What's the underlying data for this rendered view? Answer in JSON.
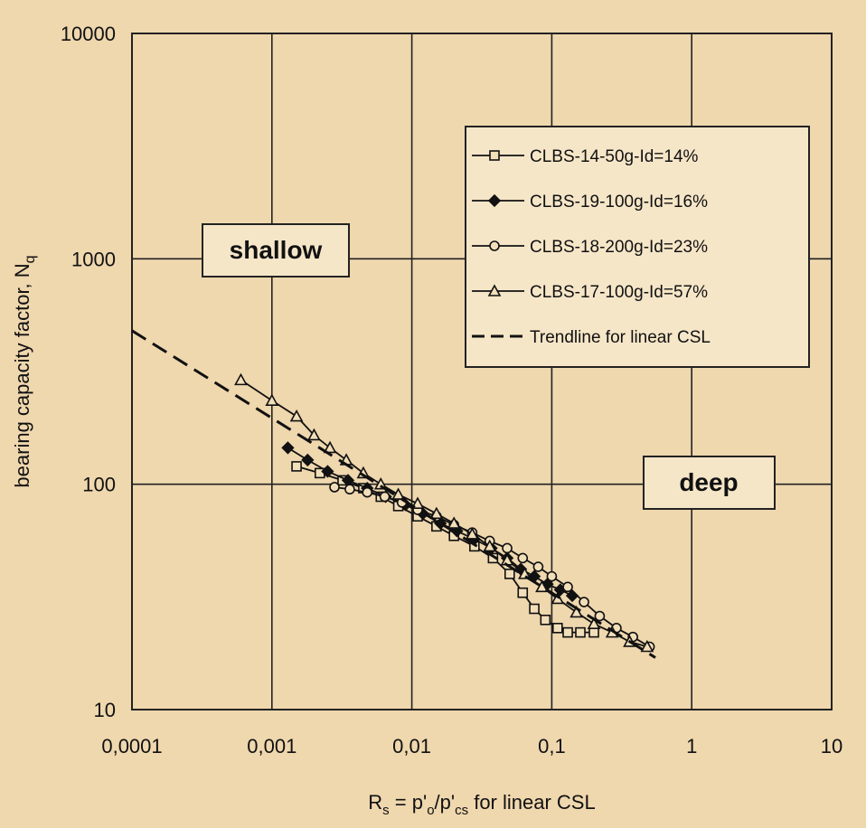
{
  "chart_data": {
    "type": "scatter",
    "xscale": "log",
    "yscale": "log",
    "xlim": [
      0.0001,
      10
    ],
    "ylim": [
      10,
      10000
    ],
    "grid": true,
    "legend_position": "top-right",
    "xticks": [
      "0,0001",
      "0,001",
      "0,01",
      "0,1",
      "1",
      "10"
    ],
    "yticks": [
      "10",
      "100",
      "1000",
      "10000"
    ],
    "xlabel": {
      "pre": "R",
      "sub1": "s",
      "mid": " = p'",
      "sub2": "o",
      "mid2": "/p'",
      "sub3": "cs",
      "post": " for linear CSL"
    },
    "ylabel": {
      "main": "bearing capacity factor, N",
      "sub": "q"
    },
    "annotations": [
      {
        "text": "shallow",
        "x": 0.00035,
        "y": 1150
      },
      {
        "text": "deep",
        "x": 0.6,
        "y": 102
      }
    ],
    "series": [
      {
        "name": "CLBS-14-50g-Id=14%",
        "marker": "square",
        "x": [
          0.0015,
          0.0022,
          0.0032,
          0.0045,
          0.006,
          0.008,
          0.011,
          0.015,
          0.02,
          0.028,
          0.038,
          0.05,
          0.062,
          0.075,
          0.09,
          0.11,
          0.13,
          0.16,
          0.2
        ],
        "y": [
          120,
          112,
          104,
          96,
          88,
          80,
          72,
          65,
          59,
          53,
          47,
          40,
          33,
          28,
          25,
          23,
          22,
          22,
          22
        ]
      },
      {
        "name": "CLBS-19-100g-Id=16%",
        "marker": "diamond",
        "x": [
          0.0013,
          0.0018,
          0.0025,
          0.0035,
          0.0048,
          0.0065,
          0.009,
          0.012,
          0.016,
          0.021,
          0.028,
          0.037,
          0.048,
          0.06,
          0.075,
          0.093,
          0.115,
          0.14
        ],
        "y": [
          145,
          128,
          114,
          104,
          96,
          88,
          81,
          74,
          67,
          62,
          57,
          52,
          47,
          42,
          39,
          36,
          34,
          32
        ]
      },
      {
        "name": "CLBS-18-200g-Id=23%",
        "marker": "circle",
        "x": [
          0.0028,
          0.0036,
          0.0048,
          0.0064,
          0.0085,
          0.011,
          0.015,
          0.02,
          0.027,
          0.036,
          0.048,
          0.062,
          0.08,
          0.1,
          0.13,
          0.17,
          0.22,
          0.29,
          0.38,
          0.5
        ],
        "y": [
          97,
          95,
          92,
          88,
          83,
          77,
          72,
          66,
          61,
          56,
          52,
          47,
          43,
          39,
          35,
          30,
          26,
          23,
          21,
          19
        ]
      },
      {
        "name": "CLBS-17-100g-Id=57%",
        "marker": "triangle",
        "x": [
          0.0006,
          0.001,
          0.0015,
          0.002,
          0.0026,
          0.0034,
          0.0045,
          0.006,
          0.008,
          0.011,
          0.015,
          0.02,
          0.027,
          0.036,
          0.048,
          0.064,
          0.085,
          0.11,
          0.15,
          0.2,
          0.27,
          0.36,
          0.48
        ],
        "y": [
          290,
          235,
          200,
          165,
          145,
          128,
          112,
          100,
          90,
          82,
          74,
          67,
          60,
          53,
          46,
          40,
          35,
          31,
          27,
          24,
          22,
          20,
          19
        ]
      },
      {
        "name": "Trendline for linear CSL",
        "line": "dashed",
        "x": [
          0.0001,
          0.55
        ],
        "y": [
          480,
          17
        ]
      }
    ]
  }
}
